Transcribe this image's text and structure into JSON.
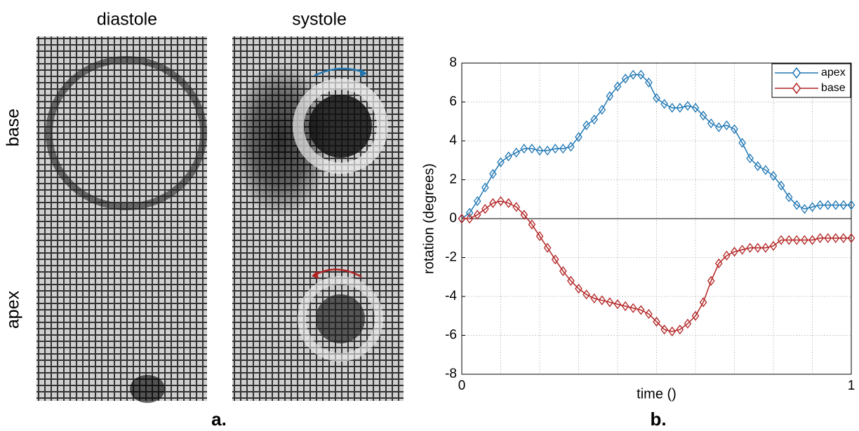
{
  "panel_a": {
    "columns": [
      "diastole",
      "systole"
    ],
    "rows": [
      "base",
      "apex"
    ],
    "label": "a."
  },
  "panel_b_label": "b.",
  "chart_data": {
    "type": "line",
    "x_label": "time ()",
    "y_label": "rotation (degrees)",
    "x": [
      0,
      0.02,
      0.04,
      0.06,
      0.08,
      0.1,
      0.12,
      0.14,
      0.16,
      0.18,
      0.2,
      0.22,
      0.24,
      0.26,
      0.28,
      0.3,
      0.32,
      0.34,
      0.36,
      0.38,
      0.4,
      0.42,
      0.44,
      0.46,
      0.48,
      0.5,
      0.52,
      0.54,
      0.56,
      0.58,
      0.6,
      0.62,
      0.64,
      0.66,
      0.68,
      0.7,
      0.72,
      0.74,
      0.76,
      0.78,
      0.8,
      0.82,
      0.84,
      0.86,
      0.88,
      0.9,
      0.92,
      0.94,
      0.96,
      0.98,
      1
    ],
    "series": [
      {
        "name": "apex",
        "color": "#1f77b4",
        "values": [
          0,
          0.3,
          0.9,
          1.6,
          2.3,
          2.9,
          3.2,
          3.4,
          3.6,
          3.6,
          3.5,
          3.5,
          3.6,
          3.6,
          3.7,
          4.2,
          4.8,
          5.1,
          5.6,
          6.3,
          6.8,
          7.2,
          7.4,
          7.4,
          7.0,
          6.2,
          5.9,
          5.7,
          5.7,
          5.8,
          5.7,
          5.3,
          4.9,
          4.7,
          4.8,
          4.6,
          3.9,
          3.1,
          2.7,
          2.5,
          2.2,
          1.7,
          1.1,
          0.7,
          0.5,
          0.6,
          0.7,
          0.7,
          0.7,
          0.7,
          0.7
        ]
      },
      {
        "name": "base",
        "color": "#b22222",
        "values": [
          0,
          0.0,
          0.2,
          0.5,
          0.8,
          0.9,
          0.8,
          0.6,
          0.2,
          -0.3,
          -0.9,
          -1.5,
          -2.1,
          -2.7,
          -3.2,
          -3.6,
          -3.9,
          -4.1,
          -4.2,
          -4.3,
          -4.4,
          -4.5,
          -4.6,
          -4.7,
          -4.9,
          -5.3,
          -5.7,
          -5.8,
          -5.7,
          -5.4,
          -5.0,
          -4.3,
          -3.2,
          -2.3,
          -1.9,
          -1.7,
          -1.6,
          -1.5,
          -1.5,
          -1.5,
          -1.4,
          -1.1,
          -1.1,
          -1.1,
          -1.1,
          -1.1,
          -1.0,
          -1.0,
          -1.0,
          -1.0,
          -1.0
        ]
      }
    ],
    "xlim": [
      0,
      1
    ],
    "ylim": [
      -8,
      8
    ],
    "xticks": [
      0,
      1
    ],
    "yticks": [
      -8,
      -6,
      -4,
      -2,
      0,
      2,
      4,
      6,
      8
    ],
    "xminorticks": [
      0.1,
      0.2,
      0.3,
      0.4,
      0.5,
      0.6,
      0.7,
      0.8,
      0.9
    ],
    "grid": true,
    "legend": "top-right"
  }
}
